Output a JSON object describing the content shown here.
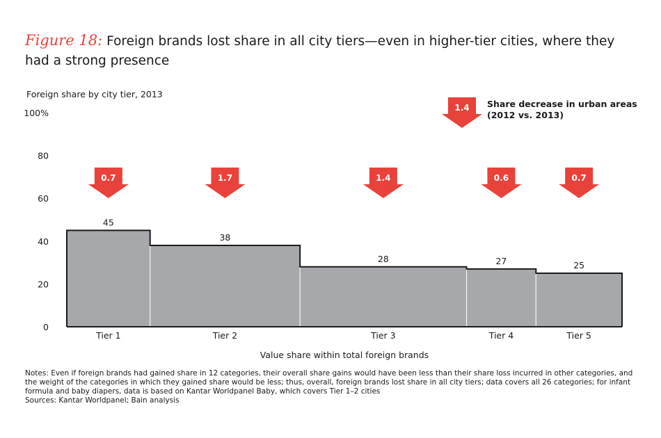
{
  "figure_label": "Figure 18:",
  "title": "Foreign brands lost share in all city tiers—even in higher-tier cities, where they had a strong presence",
  "chart_data": {
    "type": "bar",
    "variant": "variable-width (Marimekko)",
    "subtitle": "Foreign share by city tier, 2013",
    "xlabel": "Value share within total foreign brands",
    "ylabel": "",
    "ylim": [
      0,
      100
    ],
    "y_ticks": [
      "0",
      "20",
      "40",
      "60",
      "80",
      "100%"
    ],
    "categories": [
      "Tier 1",
      "Tier 2",
      "Tier 3",
      "Tier 4",
      "Tier 5"
    ],
    "values": [
      45,
      38,
      28,
      27,
      25
    ],
    "data_labels": [
      "45",
      "38",
      "28",
      "27",
      "25"
    ],
    "value_share_widths": [
      15,
      27,
      30,
      12.5,
      15.5
    ],
    "share_decrease": [
      "0.7",
      "1.7",
      "1.4",
      "0.6",
      "0.7"
    ],
    "legend": {
      "value": "1.4",
      "label_line1": "Share decrease in urban areas",
      "label_line2": "(2012 vs. 2013)"
    },
    "colors": {
      "bar": "#a7a8ab",
      "arrow": "#e8423b",
      "axis": "#1a1a1a"
    }
  },
  "notes": "Notes: Even if foreign brands had gained share in 12 categories, their overall share gains would have been less than their share loss incurred in other categories, and the weight of the categories in which they gained share would be less; thus, overall, foreign brands lost share in all city tiers; data covers all 26 categories; for infant formula and baby diapers, data is based on Kantar Worldpanel Baby, which covers Tier 1–2 cities",
  "sources": "Sources: Kantar Worldpanel; Bain analysis"
}
